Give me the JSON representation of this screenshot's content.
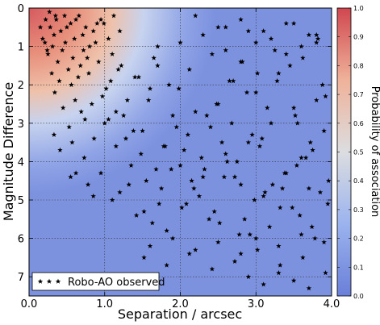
{
  "chart_data": {
    "type": "scatter",
    "title": "",
    "xlabel": "Separation / arcsec",
    "ylabel": "Magnitude Difference",
    "xlim": [
      0.0,
      4.0
    ],
    "ylim": [
      7.5,
      0.0
    ],
    "y_inverted": true,
    "grid": true,
    "xticks": [
      "0.0",
      "1.0",
      "2.0",
      "3.0",
      "4.0"
    ],
    "xtick_values": [
      0,
      1,
      2,
      3,
      4
    ],
    "yticks": [
      "0",
      "1",
      "2",
      "3",
      "4",
      "5",
      "6",
      "7"
    ],
    "ytick_values": [
      0,
      1,
      2,
      3,
      4,
      5,
      6,
      7
    ],
    "legend": {
      "label": "Robo-AO observed",
      "placement": "lower-left"
    },
    "colorbar": {
      "label": "Probability of association",
      "range": [
        0.0,
        1.0
      ],
      "ticks": [
        "0.0",
        "0.1",
        "0.2",
        "0.3",
        "0.4",
        "0.5",
        "0.6",
        "0.7",
        "0.8",
        "0.9",
        "1.0"
      ],
      "tick_values": [
        0,
        0.1,
        0.2,
        0.3,
        0.4,
        0.5,
        0.6,
        0.7,
        0.8,
        0.9,
        1.0
      ],
      "colormap": "coolwarm",
      "colors": {
        "low": "#6a7fd8",
        "mid": "#dcdde0",
        "high": "#d0474f"
      }
    },
    "background": "probability heatmap, high at small separation and small magnitude difference",
    "series": [
      {
        "name": "Robo-AO observed",
        "marker": "star",
        "color": "#000000",
        "x": [
          0.22,
          0.28,
          0.35,
          0.18,
          0.42,
          0.55,
          0.31,
          0.25,
          0.62,
          0.48,
          0.71,
          0.38,
          0.15,
          0.44,
          0.58,
          0.66,
          0.33,
          0.27,
          0.52,
          0.75,
          0.8,
          0.68,
          0.9,
          0.21,
          0.36,
          0.47,
          0.6,
          0.72,
          0.85,
          0.95,
          1.05,
          1.1,
          0.3,
          0.4,
          0.5,
          0.65,
          0.77,
          0.88,
          0.99,
          1.12,
          1.2,
          0.24,
          0.34,
          0.56,
          0.79,
          0.92,
          1.02,
          0.45,
          0.61,
          0.74,
          0.33,
          0.53,
          0.69,
          0.83,
          0.97,
          1.08,
          1.18,
          1.25,
          0.41,
          0.57,
          0.73,
          0.86,
          1.0,
          1.15,
          1.3,
          1.4,
          1.5,
          1.6,
          1.7,
          1.8,
          1.9,
          2.0,
          2.1,
          2.2,
          2.3,
          2.4,
          2.5,
          2.6,
          2.7,
          2.8,
          2.9,
          3.0,
          3.1,
          3.2,
          3.3,
          3.4,
          3.5,
          3.6,
          3.7,
          3.8,
          3.9,
          0.55,
          0.78,
          0.95,
          1.2,
          1.35,
          1.55,
          1.72,
          1.88,
          2.05,
          2.25,
          2.45,
          2.62,
          2.85,
          3.05,
          3.22,
          3.48,
          3.66,
          3.85,
          1.42,
          1.63,
          1.82,
          2.02,
          2.18,
          2.38,
          2.58,
          2.78,
          2.98,
          3.18,
          3.38,
          3.58,
          3.78,
          3.95,
          1.05,
          1.28,
          1.48,
          1.68,
          1.95,
          2.15,
          2.35,
          2.55,
          2.75,
          2.95,
          3.15,
          3.35,
          3.55,
          3.75,
          3.92,
          1.15,
          1.38,
          1.58,
          1.78,
          1.98,
          2.28,
          2.48,
          2.68,
          2.88,
          3.08,
          3.28,
          3.52,
          3.72,
          3.88,
          0.62,
          0.85,
          1.1,
          1.32,
          1.52,
          1.75,
          2.08,
          2.32,
          2.52,
          2.72,
          2.92,
          3.12,
          3.32,
          3.54,
          3.74,
          3.96,
          1.22,
          1.45,
          1.65,
          1.85,
          2.12,
          2.42,
          2.65,
          2.82,
          3.02,
          3.25,
          3.45,
          3.62,
          3.82,
          1.6,
          1.9,
          2.2,
          2.5,
          2.8,
          3.0,
          3.3,
          3.6,
          3.9,
          1.7,
          2.0,
          2.3,
          2.6,
          2.9,
          3.2,
          3.5,
          3.8,
          1.52,
          1.82,
          2.12,
          2.42,
          2.72,
          3.02,
          3.32,
          3.62,
          3.92,
          2.2,
          2.5,
          2.8,
          3.1,
          3.4,
          3.7,
          2.9,
          3.1,
          3.3,
          3.5,
          3.7,
          2.6,
          2.8,
          3.0,
          3.4,
          3.6,
          3.8
        ],
        "y": [
          0.3,
          0.5,
          0.2,
          0.8,
          0.6,
          0.4,
          1.0,
          1.2,
          0.3,
          0.9,
          0.7,
          1.4,
          0.5,
          1.1,
          1.3,
          0.2,
          0.7,
          0.1,
          1.6,
          0.5,
          1.0,
          1.5,
          0.4,
          0.9,
          0.3,
          0.2,
          0.8,
          1.1,
          0.6,
          0.3,
          0.8,
          1.2,
          1.7,
          1.9,
          0.5,
          1.8,
          1.3,
          0.9,
          0.4,
          0.2,
          0.6,
          1.1,
          2.2,
          2.0,
          1.7,
          1.4,
          2.1,
          2.6,
          2.4,
          2.9,
          3.3,
          3.1,
          2.7,
          2.5,
          2.3,
          1.9,
          1.6,
          2.8,
          3.7,
          3.5,
          3.9,
          3.4,
          3.0,
          3.6,
          2.4,
          1.8,
          3.2,
          2.1,
          1.5,
          3.6,
          2.8,
          4.1,
          3.3,
          2.7,
          4.4,
          3.1,
          2.5,
          3.8,
          1.9,
          4.6,
          3.5,
          2.2,
          4.9,
          3.0,
          1.7,
          4.3,
          2.6,
          3.9,
          4.7,
          2.4,
          3.2,
          4.4,
          4.6,
          4.3,
          4.8,
          4.1,
          4.5,
          5.1,
          4.2,
          3.7,
          4.9,
          5.3,
          4.0,
          5.5,
          3.6,
          4.6,
          5.2,
          3.9,
          4.8,
          5.4,
          5.6,
          5.8,
          5.2,
          4.7,
          5.5,
          4.4,
          5.9,
          5.0,
          5.7,
          4.3,
          5.4,
          6.0,
          5.1,
          2.9,
          3.4,
          3.8,
          4.2,
          3.1,
          4.5,
          2.8,
          3.5,
          4.0,
          3.3,
          2.6,
          4.7,
          3.0,
          3.7,
          2.3,
          2.7,
          3.2,
          2.4,
          3.6,
          2.1,
          3.9,
          2.5,
          3.0,
          2.2,
          3.4,
          1.9,
          2.8,
          3.5,
          2.0,
          4.3,
          4.9,
          5.0,
          4.6,
          5.3,
          4.7,
          5.1,
          4.2,
          5.6,
          4.4,
          5.9,
          4.8,
          5.2,
          4.1,
          5.7,
          4.5,
          1.5,
          1.8,
          1.3,
          2.0,
          1.6,
          1.2,
          1.9,
          1.4,
          1.7,
          1.1,
          1.5,
          1.3,
          0.8,
          6.2,
          6.0,
          6.3,
          6.1,
          6.4,
          6.0,
          6.2,
          5.9,
          6.1,
          1.0,
          0.9,
          0.7,
          0.5,
          0.6,
          0.8,
          0.4,
          0.9,
          6.5,
          6.7,
          6.4,
          6.8,
          6.6,
          6.3,
          6.7,
          6.5,
          6.9,
          0.2,
          0.5,
          0.3,
          0.6,
          0.4,
          0.7,
          7.0,
          7.2,
          6.9,
          7.1,
          7.3,
          1.1,
          1.4,
          0.9,
          1.2,
          1.0,
          0.7
        ]
      }
    ]
  }
}
